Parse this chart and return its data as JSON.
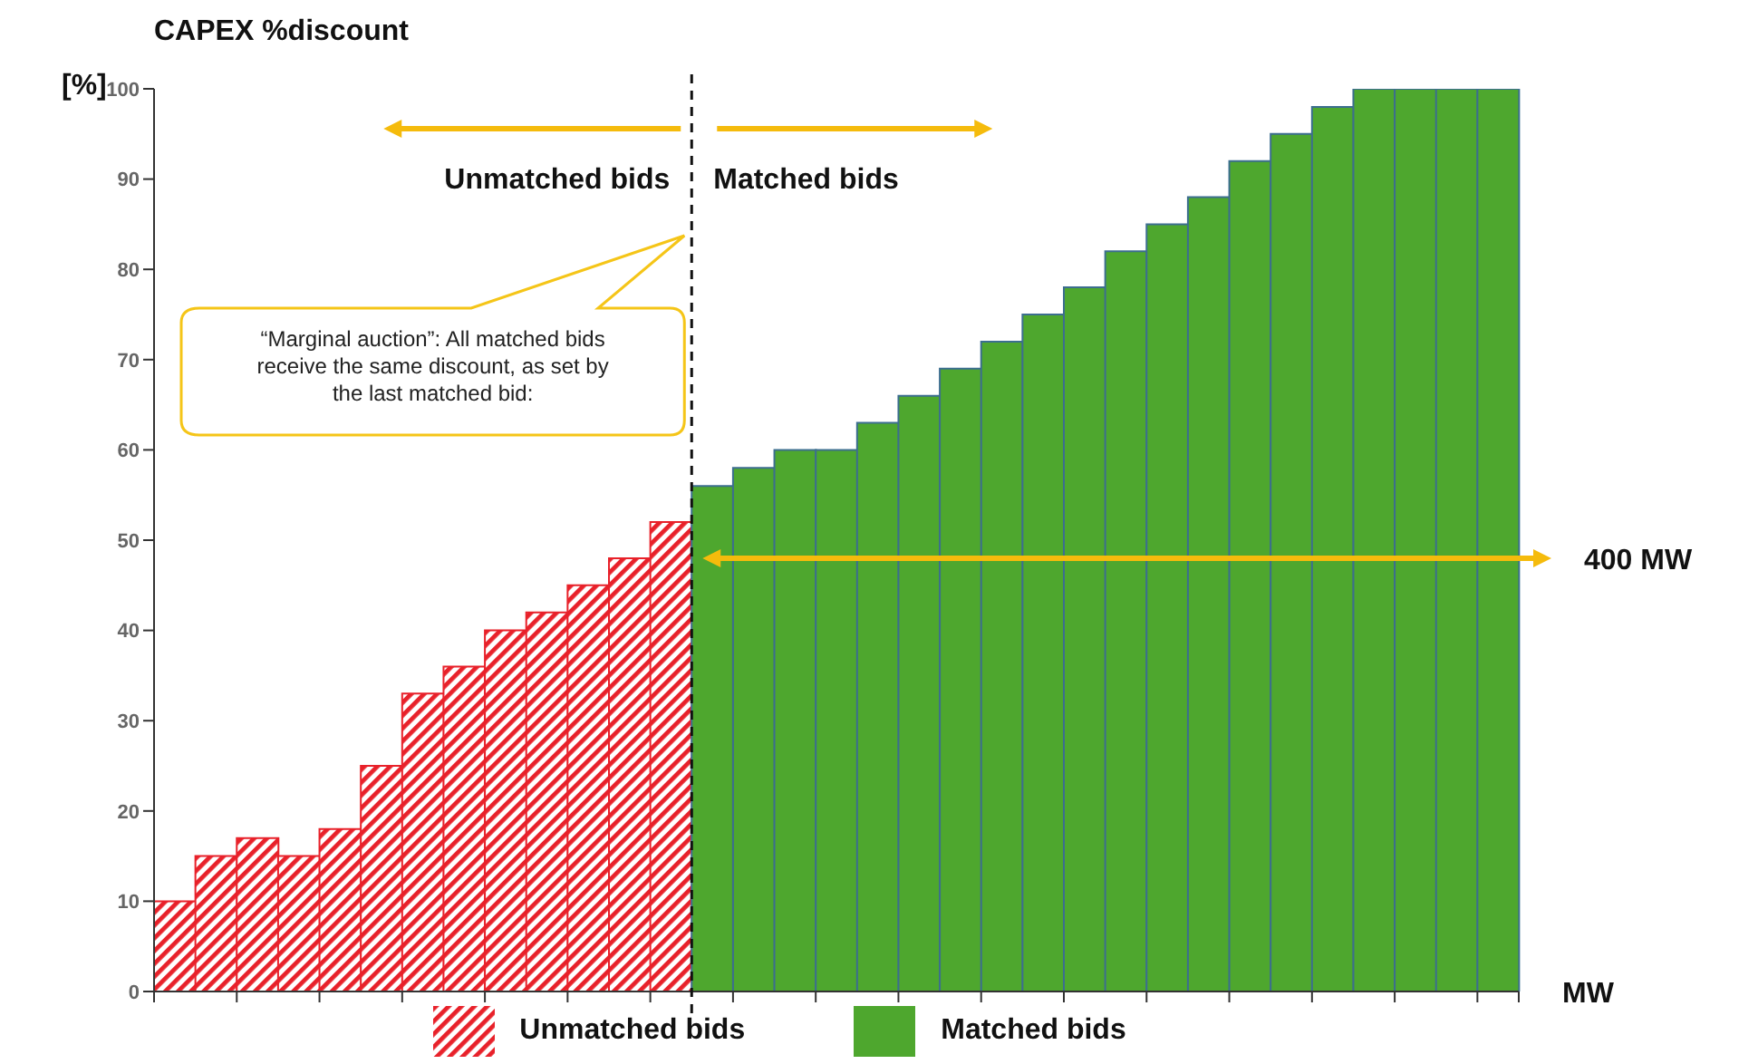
{
  "chart_data": {
    "type": "bar",
    "title": "CAPEX %discount",
    "ylabel": "[%]",
    "xlabel": "MW",
    "stacked": true,
    "categories": [
      null,
      null,
      null,
      null,
      null,
      null,
      null,
      null,
      null,
      null,
      null,
      null,
      null,
      null,
      null,
      null,
      null,
      null,
      null,
      null,
      null,
      null,
      null,
      null,
      null,
      null,
      null,
      null,
      null,
      null,
      null,
      null,
      null
    ],
    "series": [
      {
        "name": "Unmatched bids",
        "color": "#e8212a",
        "values": [
          10,
          15,
          17,
          15,
          18,
          25,
          33,
          36,
          40,
          42,
          45,
          48,
          52,
          null,
          null,
          null,
          null,
          null,
          null,
          null,
          null,
          null,
          null,
          null,
          null,
          null,
          null,
          null,
          null,
          null,
          null,
          null,
          null
        ]
      },
      {
        "name": "Matched bids",
        "color": "#4ea72e",
        "values": [
          null,
          null,
          null,
          null,
          null,
          null,
          null,
          null,
          null,
          null,
          null,
          null,
          null,
          56,
          58,
          60,
          60,
          63,
          66,
          69,
          72,
          75,
          78,
          82,
          85,
          88,
          92,
          95,
          98,
          100,
          100,
          100,
          100
        ]
      }
    ],
    "ylim": [
      0,
      100
    ],
    "yticks": [
      0,
      10,
      20,
      30,
      40,
      50,
      60,
      70,
      80,
      90,
      100
    ],
    "grid": false,
    "legend": "bottom",
    "annotations": [
      "Unmatched bids",
      "Matched bids",
      "“Marginal auction”: All matched bids receive the same discount, as set by the last matched bid:",
      "400 MW"
    ]
  }
}
